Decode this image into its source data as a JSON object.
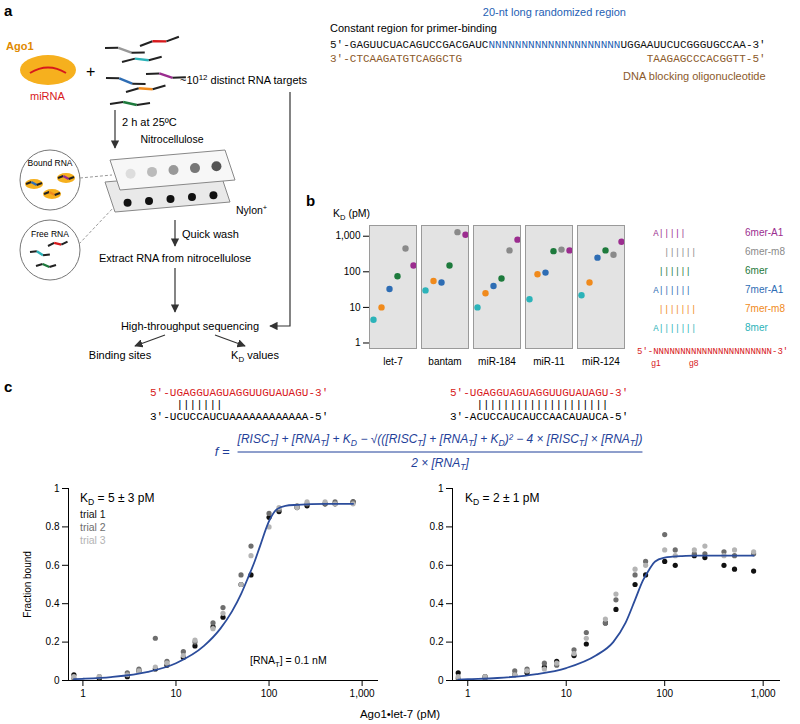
{
  "panel_a": {
    "label": "a",
    "enzyme": "Ago1",
    "guide": "miRNA",
    "plus": "+",
    "targets": [
      "~10",
      "12",
      " distinct RNA targets"
    ],
    "incubation": "2 h at 25ºC",
    "bound": "Bound RNA",
    "free": "Free RNA",
    "top_membrane": [
      "Nitrocellulose"
    ],
    "bottom_membrane": [
      "Nylon",
      "+"
    ],
    "wash": "Quick wash",
    "extract": "Extract RNA from nitrocellulose",
    "sequencing": "High-throughput sequencing",
    "outputs": [
      [
        "Binding sites"
      ],
      [
        "K",
        "D",
        " values"
      ]
    ],
    "library": {
      "constant_label": "Constant region for primer-binding",
      "random_label": "20-nt long randomized region",
      "blocker_label": "DNA blocking oligonucleotide",
      "rna": [
        "5'-GAGUUCUACAGUCCGACGAUC",
        "NNNNNNNNNNNNNNNNNNNN",
        "UGGAAUUCUCGGGUGCCAA-3'"
      ],
      "dna_left": "3'-CTCAAGATGTCAGGCTG",
      "dna_right": "TAAGAGCCCACGGTT-5'"
    }
  },
  "panel_c": {
    "label": "c",
    "duplexes": [
      {
        "mirna": "5'-UGAGGUAGUAGGUUGUAUAGU-3'",
        "pairing": "    |||||||",
        "target": "3'-UCUCCAUCUAAAAAAAAAAAA-5'"
      },
      {
        "mirna": "5'-UGAGGUAGUAGGUUGUAUAGU-3'",
        "pairing": "    ||||||||||||||||||||",
        "target": "3'-ACUCCAUCAUCCAACAUAUCA-5'"
      }
    ],
    "equation": {
      "lhs": "f =",
      "numerator": [
        "[RISC",
        "T",
        "] + [RNA",
        "T",
        "] + K",
        "D",
        " − √(([RISC",
        "T",
        "] + [RNA",
        "T",
        "] + K",
        "D",
        ")² − 4 × [RISC",
        "T",
        "] × [RNA",
        "T",
        "])"
      ],
      "denominator": [
        "2 × [RNA",
        "T",
        "]"
      ]
    },
    "x_label": "Ago1•let-7 (pM)"
  },
  "chart_data": [
    {
      "panel_label": "b",
      "type": "scatter",
      "y_label": [
        "K",
        "D",
        " (pM)"
      ],
      "categories": [
        "let-7",
        "bantam",
        "miR-184",
        "miR-11",
        "miR-124"
      ],
      "series": [
        {
          "name": "6mer-A1",
          "color": "#9b2d8f",
          "pairing": "   A|||||",
          "values": [
            150,
            1100,
            800,
            400,
            700
          ]
        },
        {
          "name": "6mer-m8",
          "color": "#8a8a8a",
          "pairing": "     ||||||",
          "values": [
            450,
            1300,
            400,
            420,
            300
          ]
        },
        {
          "name": "6mer",
          "color": "#1d7a3c",
          "pairing": "    ||||||",
          "values": [
            75,
            150,
            65,
            380,
            400
          ]
        },
        {
          "name": "7mer-A1",
          "color": "#2e6db4",
          "pairing": "   A||||||",
          "values": [
            33,
            50,
            40,
            95,
            250
          ]
        },
        {
          "name": "7mer-m8",
          "color": "#f08a1c",
          "pairing": "    |||||||",
          "values": [
            10,
            55,
            25,
            85,
            50
          ]
        },
        {
          "name": "8mer",
          "color": "#2bb3b9",
          "pairing": "   A|||||||",
          "values": [
            4.5,
            30,
            10,
            17,
            22
          ]
        }
      ],
      "ylim": [
        0.7,
        2000
      ],
      "yticks": [
        1,
        10,
        100,
        {
          "value": 1000,
          "label": "1,000"
        }
      ],
      "log": "y",
      "grid": false,
      "legend": "right",
      "guide": "5'-NNNNNNNNNNNNNNNNNNNNNN-3'",
      "guide_positions": [
        {
          "label": "g1",
          "position": 1
        },
        {
          "label": "g8",
          "position": 8
        }
      ]
    },
    {
      "type": "scatter",
      "y_label": "Fraction bound",
      "kd": [
        "K",
        "D",
        " = 5 ± 3 pM"
      ],
      "rna_note": [
        "[RNA",
        "T",
        "] = 0.1 nM"
      ],
      "legend": "top-left",
      "x": [
        0.8,
        1.5,
        3,
        4,
        6,
        8,
        12,
        16,
        25,
        32,
        50,
        64,
        100,
        128,
        200,
        256,
        400,
        512,
        800
      ],
      "series": [
        {
          "name": "trial 1",
          "color": "#111111",
          "values": [
            0.03,
            0.01,
            0.02,
            0.05,
            0.06,
            0.08,
            0.12,
            0.18,
            0.28,
            0.33,
            0.5,
            0.55,
            0.85,
            0.88,
            0.9,
            0.91,
            0.92,
            0.92,
            0.93
          ]
        },
        {
          "name": "trial 2",
          "color": "#6e6e6e",
          "values": [
            0.01,
            0.02,
            0.04,
            0.06,
            0.22,
            0.1,
            0.15,
            0.2,
            0.3,
            0.38,
            0.55,
            0.7,
            0.87,
            0.89,
            0.91,
            0.92,
            0.92,
            0.93,
            0.93
          ]
        },
        {
          "name": "trial 3",
          "color": "#b4b4b4",
          "values": [
            0.02,
            0.02,
            0.03,
            0.05,
            0.07,
            0.09,
            0.13,
            0.21,
            0.27,
            0.35,
            0.5,
            0.65,
            0.8,
            0.9,
            0.9,
            0.93,
            0.93,
            0.92,
            0.92
          ]
        }
      ],
      "fit_curve": {
        "color": "#2b4c9b",
        "x": [
          0.8,
          1,
          2,
          5,
          10,
          20,
          30,
          40,
          50,
          60,
          70,
          80,
          100,
          120,
          150,
          200,
          400,
          800
        ],
        "values": [
          0.007,
          0.009,
          0.018,
          0.045,
          0.09,
          0.18,
          0.27,
          0.36,
          0.45,
          0.54,
          0.62,
          0.7,
          0.83,
          0.89,
          0.91,
          0.915,
          0.92,
          0.92
        ]
      },
      "xlim": [
        0.7,
        1500
      ],
      "xticks": [
        1,
        10,
        100,
        {
          "value": 1000,
          "label": "1,000"
        }
      ],
      "ylim": [
        0,
        1
      ],
      "yticks": [
        0,
        0.2,
        0.4,
        0.6,
        0.8,
        1
      ],
      "log": "x"
    },
    {
      "type": "scatter",
      "kd": [
        "K",
        "D",
        " = 2 ± 1 pM"
      ],
      "x": [
        0.8,
        1.5,
        3,
        4,
        6,
        8,
        12,
        16,
        25,
        32,
        50,
        64,
        100,
        128,
        200,
        256,
        400,
        512,
        800
      ],
      "series": [
        {
          "color": "#111111",
          "values": [
            0.04,
            0.02,
            0.03,
            0.04,
            0.07,
            0.1,
            0.13,
            0.19,
            0.3,
            0.37,
            0.5,
            0.55,
            0.62,
            0.6,
            0.65,
            0.64,
            0.6,
            0.58,
            0.57
          ]
        },
        {
          "color": "#6e6e6e",
          "values": [
            0.01,
            0.01,
            0.05,
            0.06,
            0.09,
            0.08,
            0.16,
            0.25,
            0.3,
            0.42,
            0.55,
            0.62,
            0.76,
            0.68,
            0.66,
            0.66,
            0.67,
            0.65,
            0.66
          ]
        },
        {
          "color": "#b4b4b4",
          "values": [
            0.02,
            0.02,
            0.03,
            0.05,
            0.06,
            0.09,
            0.14,
            0.22,
            0.32,
            0.45,
            0.58,
            0.6,
            0.68,
            0.65,
            0.68,
            0.7,
            0.65,
            0.68,
            0.67
          ]
        }
      ],
      "fit_curve": {
        "color": "#2b4c9b",
        "x": [
          0.8,
          1,
          2,
          5,
          10,
          20,
          30,
          40,
          50,
          60,
          70,
          80,
          100,
          120,
          150,
          200,
          400,
          800
        ],
        "values": [
          0.005,
          0.007,
          0.013,
          0.033,
          0.065,
          0.13,
          0.2,
          0.3,
          0.42,
          0.52,
          0.58,
          0.62,
          0.64,
          0.645,
          0.648,
          0.65,
          0.65,
          0.65
        ]
      },
      "xlim": [
        0.7,
        1500
      ],
      "xticks": [
        1,
        10,
        100,
        {
          "value": 1000,
          "label": "1,000"
        }
      ],
      "ylim": [
        0,
        1
      ],
      "yticks": [
        0,
        0.2,
        0.4,
        0.6,
        0.8,
        1
      ],
      "log": "x"
    }
  ]
}
